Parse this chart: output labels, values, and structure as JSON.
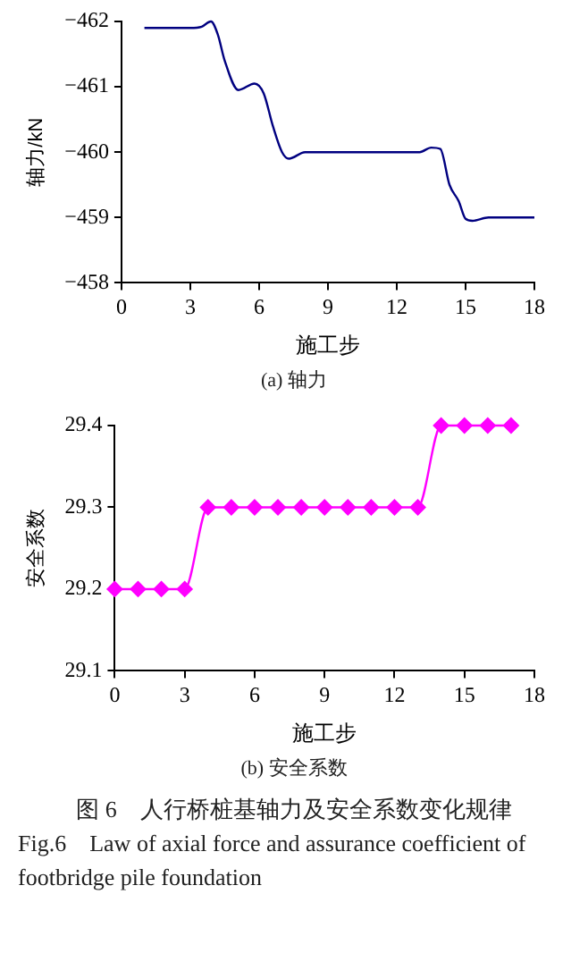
{
  "chart_data": [
    {
      "type": "line",
      "title": "(a)  轴力",
      "xlabel": "施工步",
      "ylabel": "轴力/kN",
      "xlim": [
        0,
        18
      ],
      "xticks": [
        0,
        3,
        6,
        9,
        12,
        15,
        18
      ],
      "ylim": [
        -458,
        -462
      ],
      "yticks": [
        -462,
        -461,
        -460,
        -459,
        -458
      ],
      "grid": false,
      "legend": false,
      "marker": "none",
      "series": [
        {
          "color": "#000080",
          "x": [
            1,
            2,
            3,
            3.5,
            3.9,
            4.2,
            4.5,
            5.1,
            5.8,
            6.2,
            6.6,
            7.0,
            7.3,
            8,
            13,
            13.5,
            13.9,
            14.3,
            14.7,
            15,
            15.3,
            16,
            18
          ],
          "values": [
            -461.9,
            -461.9,
            -461.9,
            -461.92,
            -462.0,
            -461.8,
            -461.4,
            -460.95,
            -461.05,
            -460.9,
            -460.4,
            -460.0,
            -459.9,
            -460.0,
            -460.0,
            -460.07,
            -460.05,
            -459.5,
            -459.25,
            -458.98,
            -458.95,
            -459.0,
            -459.0
          ]
        }
      ]
    },
    {
      "type": "line",
      "title": "(b)  安全系数",
      "xlabel": "施工步",
      "ylabel": "安全系数",
      "xlim": [
        0,
        18
      ],
      "xticks": [
        0,
        3,
        6,
        9,
        12,
        15,
        18
      ],
      "ylim": [
        29.1,
        29.4
      ],
      "yticks": [
        29.1,
        29.2,
        29.3,
        29.4
      ],
      "grid": false,
      "legend": false,
      "marker": "diamond",
      "annotations": [
        "图 6　人行桥桩基轴力及安全系数变化规律",
        "Fig.6　Law of axial force and assurance coefficient of footbridge pile foundation"
      ],
      "series": [
        {
          "color": "#ff00ff",
          "x": [
            0,
            1,
            2,
            3,
            4,
            5,
            6,
            7,
            8,
            9,
            10,
            11,
            12,
            13,
            14,
            15,
            16,
            17
          ],
          "values": [
            29.2,
            29.2,
            29.2,
            29.2,
            29.3,
            29.3,
            29.3,
            29.3,
            29.3,
            29.3,
            29.3,
            29.3,
            29.3,
            29.3,
            29.4,
            29.4,
            29.4,
            29.4
          ]
        }
      ]
    }
  ]
}
